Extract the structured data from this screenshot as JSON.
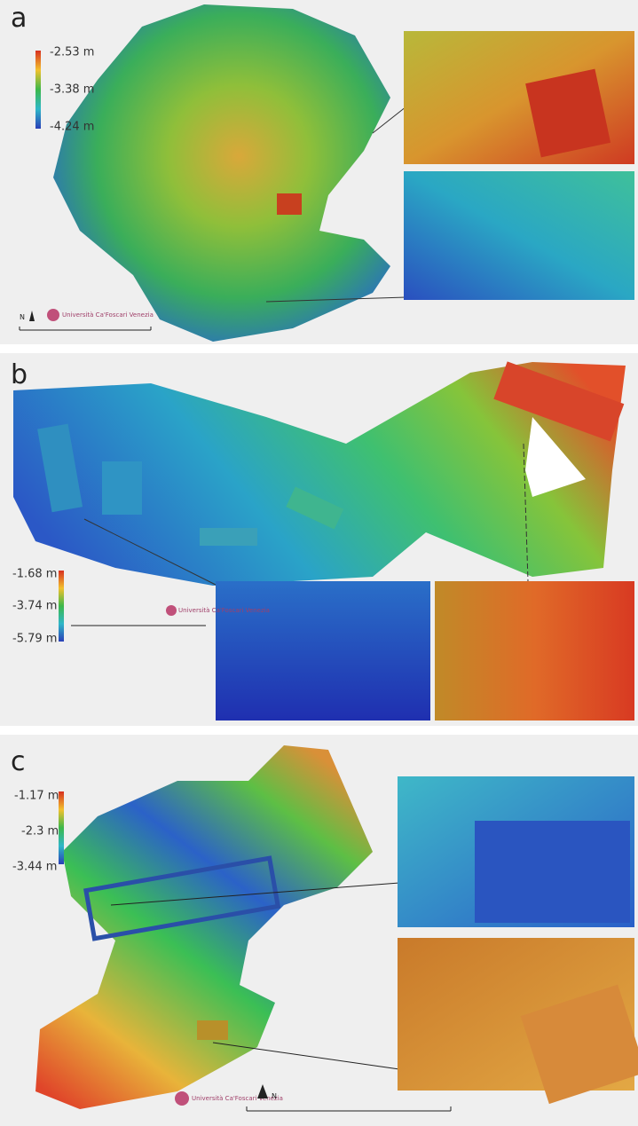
{
  "panels": [
    {
      "label": "a",
      "colorbar": {
        "labels": [
          "-2.53 m",
          "-3.38 m",
          "-4.24 m"
        ]
      },
      "north": "N",
      "logo": "Università Ca'Foscari Venezia"
    },
    {
      "label": "b",
      "colorbar": {
        "labels": [
          "-1.68 m",
          "-3.74 m",
          "-5.79 m"
        ]
      },
      "logo": "Università Ca'Foscari Venezia"
    },
    {
      "label": "c",
      "colorbar": {
        "labels": [
          "-1.17 m",
          "-2.3 m",
          "-3.44 m"
        ]
      },
      "north": "N",
      "logo": "Università Ca'Foscari Venezia"
    }
  ]
}
